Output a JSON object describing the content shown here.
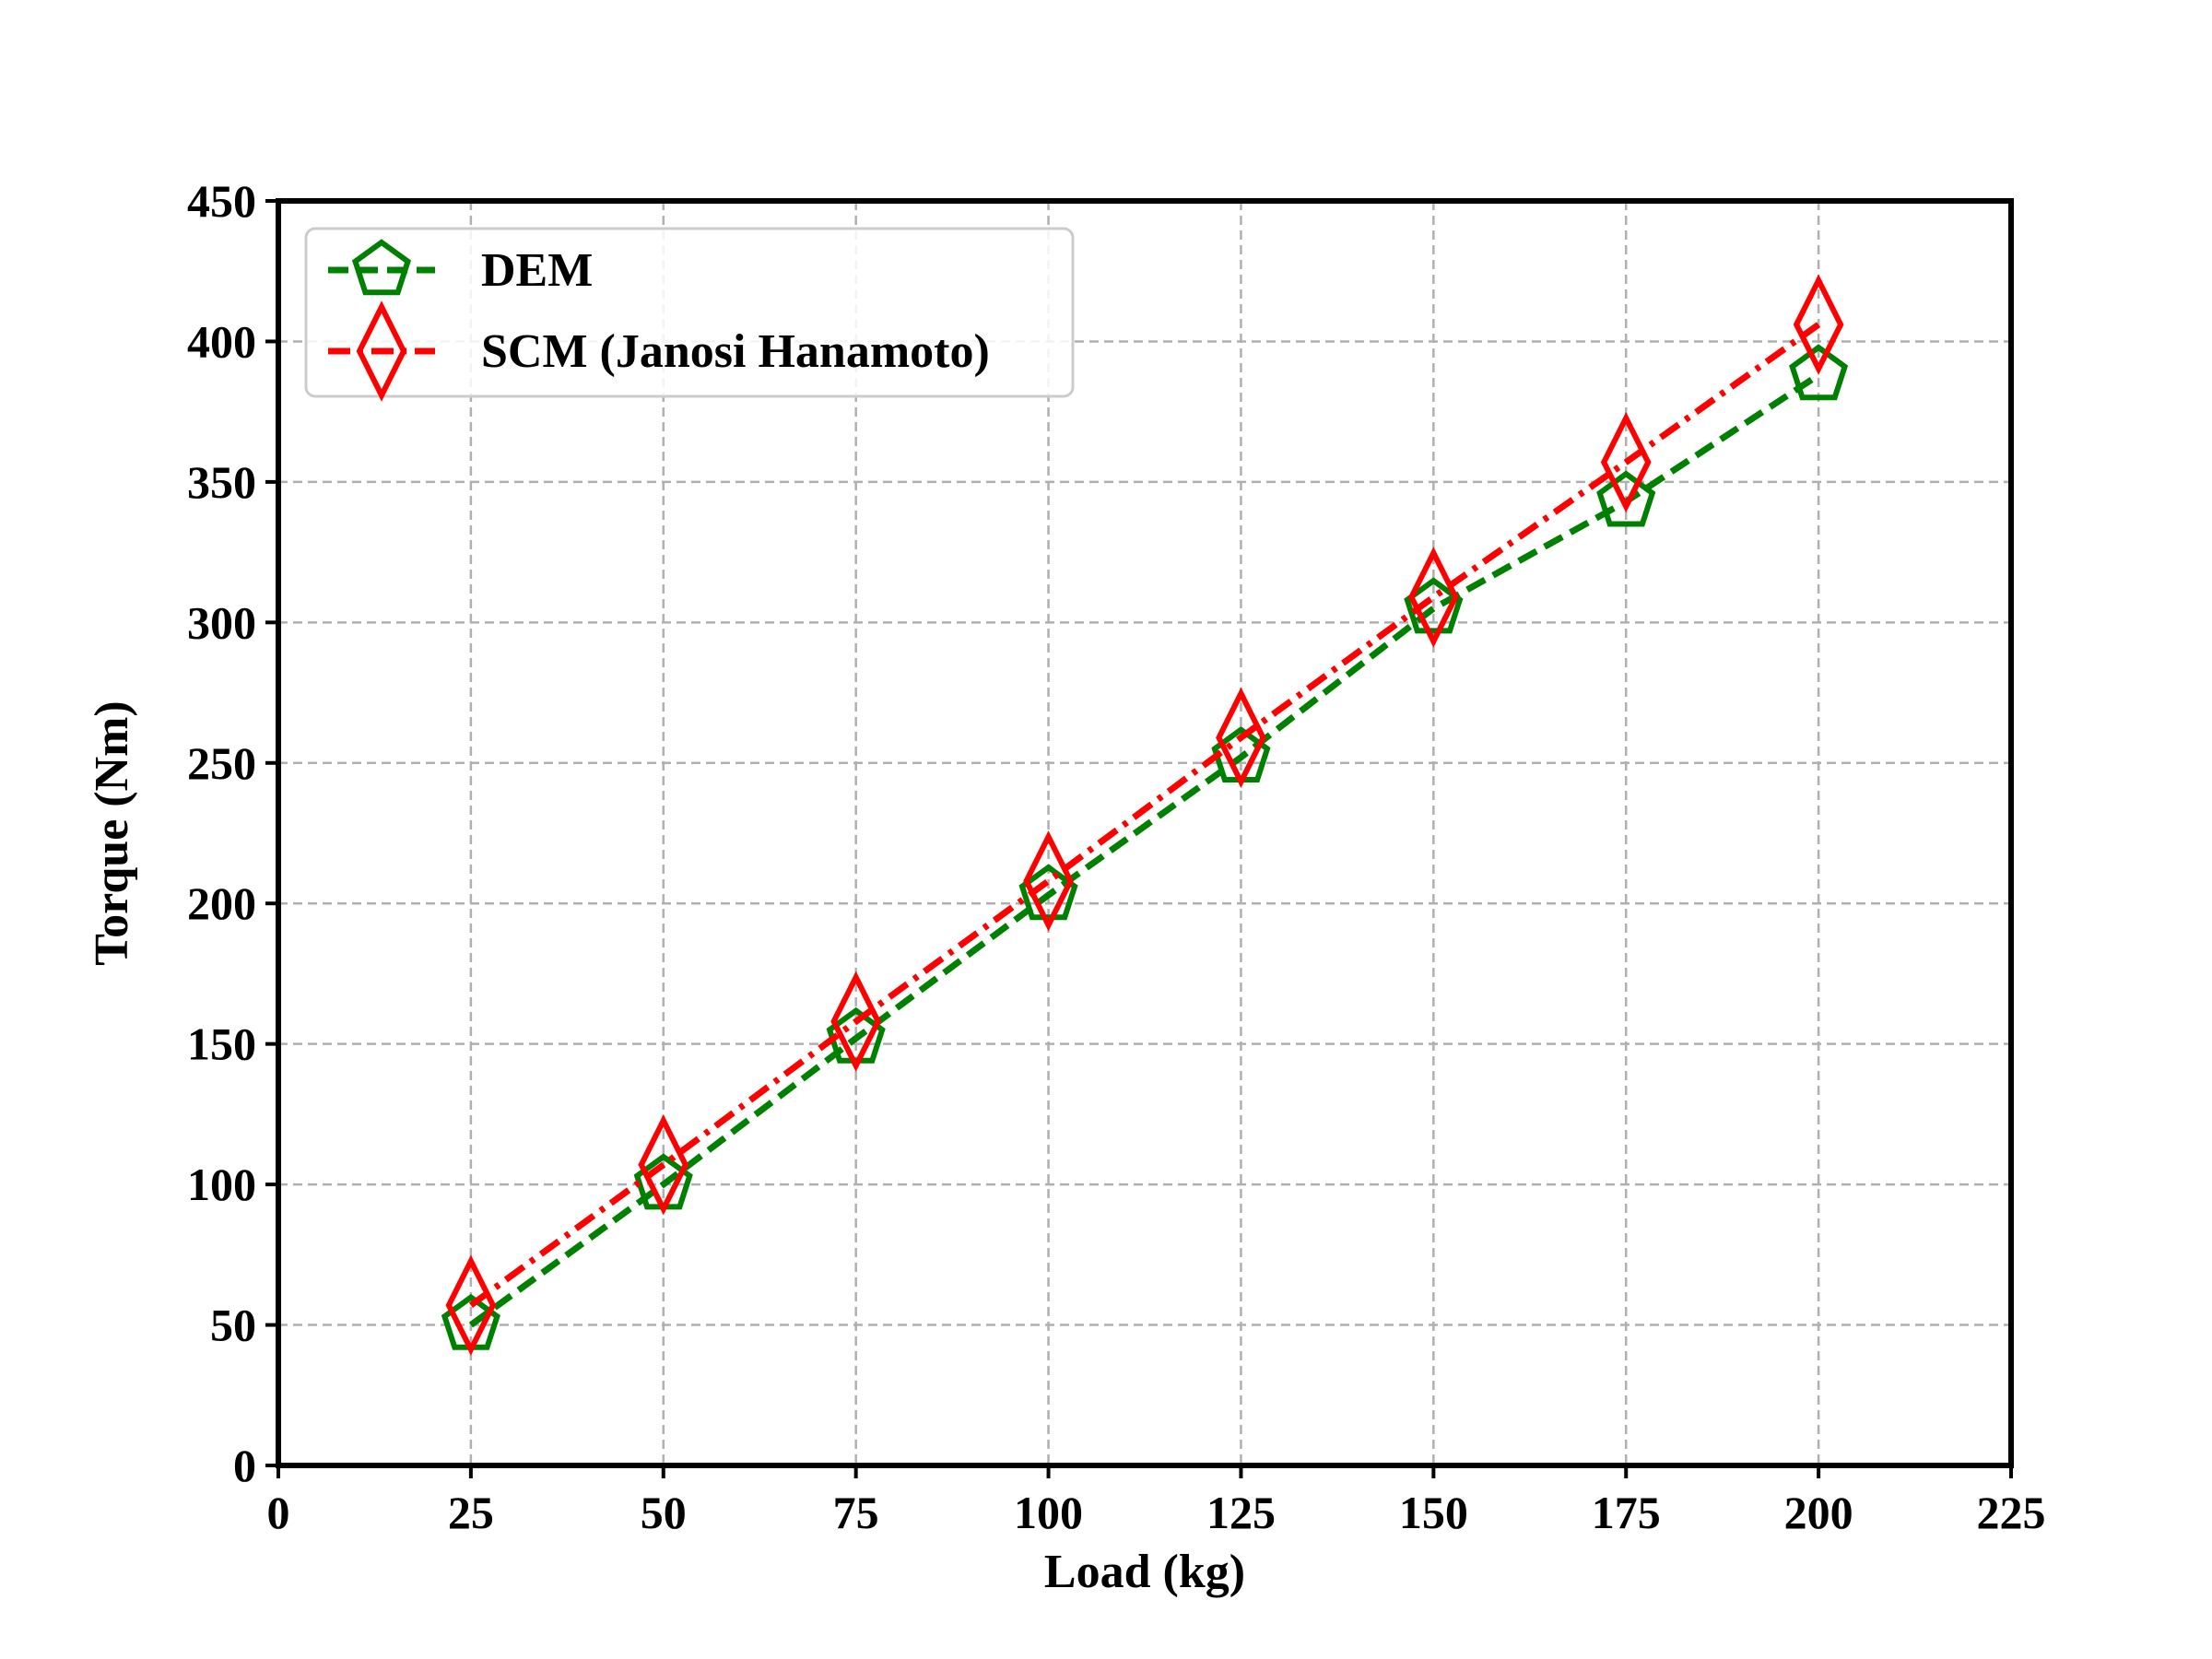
{
  "chart_data": {
    "type": "line",
    "title": "",
    "xlabel": "Load (kg)",
    "ylabel": "Torque (Nm)",
    "xlim": [
      0,
      225
    ],
    "ylim": [
      0,
      450
    ],
    "xticks": [
      0,
      25,
      50,
      75,
      100,
      125,
      150,
      175,
      200,
      225
    ],
    "yticks": [
      0,
      50,
      100,
      150,
      200,
      250,
      300,
      350,
      400,
      450
    ],
    "grid": true,
    "legend_position": "top-left",
    "x": [
      25,
      50,
      75,
      100,
      125,
      150,
      175,
      200
    ],
    "series": [
      {
        "name": "DEM",
        "values": [
          50,
          100,
          152,
          203,
          252,
          305,
          343,
          388
        ],
        "color": "#008000",
        "marker": "pentagon",
        "linestyle": "dashed"
      },
      {
        "name": "SCM (Janosi Hanamoto)",
        "values": [
          57,
          107,
          158,
          208,
          259,
          309,
          357,
          406
        ],
        "color": "#ff0000",
        "marker": "diamond",
        "linestyle": "dashdot"
      }
    ]
  }
}
